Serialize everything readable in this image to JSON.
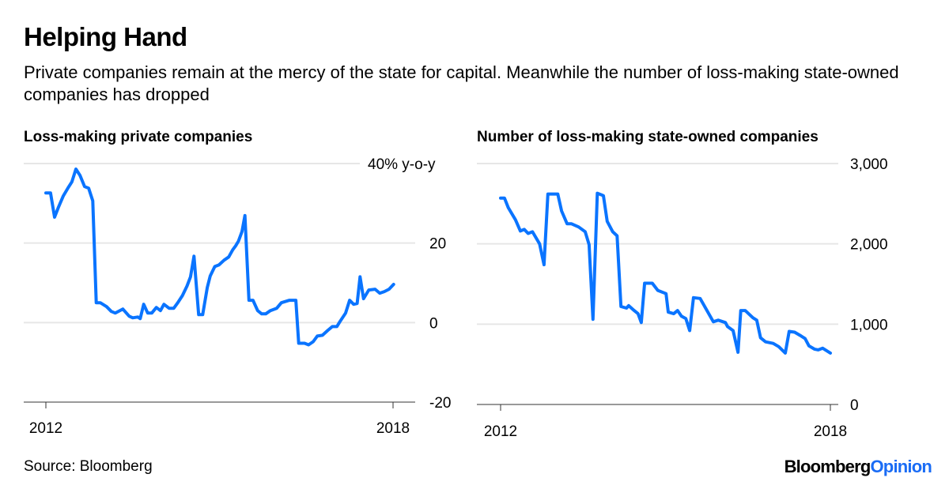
{
  "title": "Helping Hand",
  "subtitle": "Private companies remain at the mercy of the state for capital. Meanwhile the number of loss-making state-owned companies has dropped",
  "source": "Source: Bloomberg",
  "logo": {
    "brand": "Bloomberg",
    "suffix": "Opinion"
  },
  "colors": {
    "line": "#0a74ff",
    "grid": "#e6e6e6",
    "logo_accent": "#1a6cf5"
  },
  "chart_data": [
    {
      "type": "line",
      "title": "Loss-making private companies",
      "ylabel_unit": "% y-o-y",
      "ylim": [
        -20,
        40
      ],
      "yticks": [
        {
          "v": 40,
          "label": "40% y-o-y"
        },
        {
          "v": 20,
          "label": "20"
        },
        {
          "v": 0,
          "label": "0"
        },
        {
          "v": -20,
          "label": "-20"
        }
      ],
      "xlim": [
        2012,
        2018
      ],
      "xticks": [
        {
          "v": 2012,
          "label": "2012"
        },
        {
          "v": 2018,
          "label": "2018"
        }
      ],
      "grid": true,
      "points": [
        [
          2012.0,
          32.6
        ],
        [
          2012.08,
          32.6
        ],
        [
          2012.15,
          26.5
        ],
        [
          2012.22,
          29.1
        ],
        [
          2012.3,
          31.8
        ],
        [
          2012.38,
          33.8
        ],
        [
          2012.45,
          35.4
        ],
        [
          2012.52,
          38.6
        ],
        [
          2012.59,
          37.0
        ],
        [
          2012.67,
          34.2
        ],
        [
          2012.74,
          33.8
        ],
        [
          2012.81,
          30.6
        ],
        [
          2012.87,
          5.0
        ],
        [
          2012.94,
          5.0
        ],
        [
          2013.05,
          4.0
        ],
        [
          2013.13,
          2.8
        ],
        [
          2013.2,
          2.4
        ],
        [
          2013.33,
          3.4
        ],
        [
          2013.44,
          1.6
        ],
        [
          2013.5,
          1.2
        ],
        [
          2013.59,
          1.4
        ],
        [
          2013.63,
          1.0
        ],
        [
          2013.69,
          4.6
        ],
        [
          2013.76,
          2.4
        ],
        [
          2013.83,
          2.4
        ],
        [
          2013.91,
          3.8
        ],
        [
          2013.98,
          3.0
        ],
        [
          2014.04,
          4.6
        ],
        [
          2014.13,
          3.6
        ],
        [
          2014.21,
          3.6
        ],
        [
          2014.28,
          5.0
        ],
        [
          2014.36,
          6.8
        ],
        [
          2014.44,
          9.2
        ],
        [
          2014.5,
          11.5
        ],
        [
          2014.56,
          16.7
        ],
        [
          2014.64,
          2.0
        ],
        [
          2014.71,
          2.0
        ],
        [
          2014.79,
          8.8
        ],
        [
          2014.84,
          11.7
        ],
        [
          2014.92,
          14.1
        ],
        [
          2014.99,
          14.5
        ],
        [
          2015.08,
          15.7
        ],
        [
          2015.16,
          16.5
        ],
        [
          2015.23,
          18.3
        ],
        [
          2015.28,
          19.3
        ],
        [
          2015.33,
          20.5
        ],
        [
          2015.39,
          22.9
        ],
        [
          2015.44,
          26.9
        ],
        [
          2015.51,
          5.6
        ],
        [
          2015.58,
          5.6
        ],
        [
          2015.66,
          3.0
        ],
        [
          2015.73,
          2.2
        ],
        [
          2015.8,
          2.2
        ],
        [
          2015.88,
          3.0
        ],
        [
          2015.99,
          3.6
        ],
        [
          2016.07,
          5.0
        ],
        [
          2016.21,
          5.6
        ],
        [
          2016.32,
          5.6
        ],
        [
          2016.37,
          -5.2
        ],
        [
          2016.47,
          -5.2
        ],
        [
          2016.54,
          -5.6
        ],
        [
          2016.62,
          -4.8
        ],
        [
          2016.69,
          -3.4
        ],
        [
          2016.78,
          -3.2
        ],
        [
          2016.87,
          -2.0
        ],
        [
          2016.95,
          -1.0
        ],
        [
          2017.03,
          -1.0
        ],
        [
          2017.08,
          0.2
        ],
        [
          2017.18,
          2.4
        ],
        [
          2017.25,
          5.6
        ],
        [
          2017.32,
          4.6
        ],
        [
          2017.38,
          4.8
        ],
        [
          2017.43,
          11.5
        ],
        [
          2017.49,
          6.0
        ],
        [
          2017.58,
          8.2
        ],
        [
          2017.69,
          8.4
        ],
        [
          2017.77,
          7.4
        ],
        [
          2017.85,
          7.8
        ],
        [
          2017.93,
          8.4
        ],
        [
          2018.01,
          9.6
        ]
      ]
    },
    {
      "type": "line",
      "title": "Number of loss-making state-owned companies",
      "ylim": [
        0,
        3000
      ],
      "yticks": [
        {
          "v": 3000,
          "label": "3,000"
        },
        {
          "v": 2000,
          "label": "2,000"
        },
        {
          "v": 1000,
          "label": "1,000"
        },
        {
          "v": 0,
          "label": "0"
        }
      ],
      "xlim": [
        2012,
        2018
      ],
      "xticks": [
        {
          "v": 2012,
          "label": "2012"
        },
        {
          "v": 2018,
          "label": "2018"
        }
      ],
      "grid": true,
      "points": [
        [
          2012.0,
          2570
        ],
        [
          2012.07,
          2570
        ],
        [
          2012.14,
          2450
        ],
        [
          2012.27,
          2300
        ],
        [
          2012.36,
          2160
        ],
        [
          2012.43,
          2180
        ],
        [
          2012.5,
          2130
        ],
        [
          2012.58,
          2150
        ],
        [
          2012.71,
          2000
        ],
        [
          2012.79,
          1740
        ],
        [
          2012.86,
          2620
        ],
        [
          2013.04,
          2620
        ],
        [
          2013.11,
          2410
        ],
        [
          2013.21,
          2250
        ],
        [
          2013.29,
          2250
        ],
        [
          2013.42,
          2210
        ],
        [
          2013.54,
          2150
        ],
        [
          2013.61,
          1990
        ],
        [
          2013.68,
          1060
        ],
        [
          2013.76,
          2630
        ],
        [
          2013.87,
          2600
        ],
        [
          2013.94,
          2280
        ],
        [
          2014.04,
          2150
        ],
        [
          2014.12,
          2100
        ],
        [
          2014.19,
          1220
        ],
        [
          2014.29,
          1200
        ],
        [
          2014.33,
          1230
        ],
        [
          2014.43,
          1170
        ],
        [
          2014.5,
          1130
        ],
        [
          2014.56,
          1020
        ],
        [
          2014.62,
          1510
        ],
        [
          2014.76,
          1510
        ],
        [
          2014.86,
          1420
        ],
        [
          2015.01,
          1380
        ],
        [
          2015.05,
          1150
        ],
        [
          2015.15,
          1130
        ],
        [
          2015.22,
          1170
        ],
        [
          2015.29,
          1100
        ],
        [
          2015.37,
          1070
        ],
        [
          2015.44,
          920
        ],
        [
          2015.51,
          1330
        ],
        [
          2015.63,
          1320
        ],
        [
          2015.73,
          1200
        ],
        [
          2015.87,
          1030
        ],
        [
          2015.96,
          1050
        ],
        [
          2016.09,
          1020
        ],
        [
          2016.13,
          970
        ],
        [
          2016.23,
          920
        ],
        [
          2016.32,
          650
        ],
        [
          2016.37,
          1170
        ],
        [
          2016.45,
          1170
        ],
        [
          2016.59,
          1080
        ],
        [
          2016.66,
          1050
        ],
        [
          2016.73,
          830
        ],
        [
          2016.82,
          780
        ],
        [
          2016.96,
          760
        ],
        [
          2017.06,
          720
        ],
        [
          2017.18,
          640
        ],
        [
          2017.25,
          910
        ],
        [
          2017.35,
          900
        ],
        [
          2017.45,
          860
        ],
        [
          2017.54,
          820
        ],
        [
          2017.61,
          730
        ],
        [
          2017.71,
          690
        ],
        [
          2017.78,
          680
        ],
        [
          2017.86,
          700
        ],
        [
          2018.0,
          640
        ]
      ]
    }
  ]
}
